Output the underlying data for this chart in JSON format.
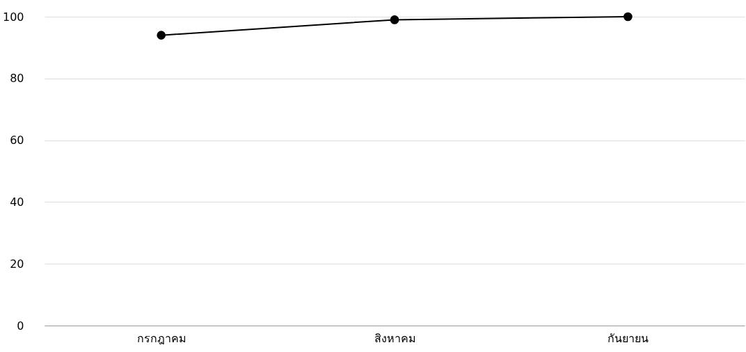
{
  "chart_data": {
    "type": "line",
    "categories": [
      "กรกฎาคม",
      "สิงหาคม",
      "กันยายน"
    ],
    "series": [
      {
        "color": "#000000",
        "values": [
          94,
          99,
          100
        ]
      }
    ],
    "ylim": [
      0,
      100
    ],
    "yticks": [
      0,
      20,
      40,
      60,
      80,
      100
    ],
    "grid": "y",
    "legend": false,
    "marker": "circle",
    "line_style": "solid"
  }
}
